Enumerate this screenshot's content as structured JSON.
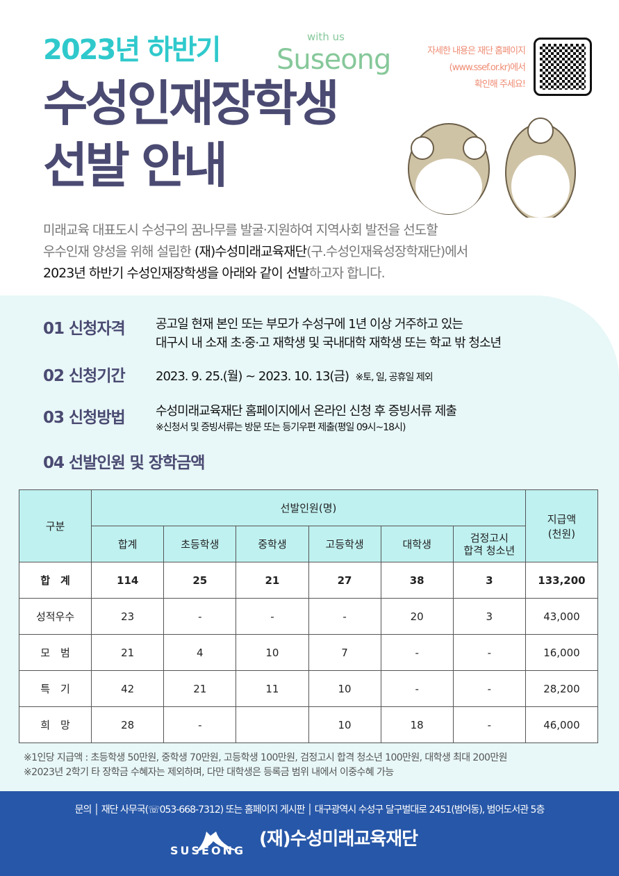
{
  "header": {
    "subtitle": "2023년 하반기",
    "brand_small": "with us",
    "brand": "Suseong",
    "title_line1": "수성인재장학생",
    "title_line2": "선발 안내",
    "note": [
      "자세한 내용은 재단 홈페이지",
      "(www.ssef.or.kr)에서",
      "확인해 주세요!"
    ]
  },
  "intro": {
    "line1": "미래교육 대표도시 수성구의 꿈나무를 발굴·지원하여 지역사회 발전을 선도할",
    "line2_a": "우수인재 양성을 위해 설립한 ",
    "line2_b": "(재)수성미래교육재단",
    "line2_c": "(구.수성인재육성장학재단)에서",
    "line3_a": "2023년 하반기 수성인재장학생을 아래와 같이 선발",
    "line3_b": "하고자 합니다."
  },
  "sections": [
    {
      "heading": "01 신청자격",
      "lines": [
        "공고일 현재 본인 또는 부모가 수성구에 1년 이상 거주하고 있는",
        "대구시 내 소재 초·중·고 재학생 및 국내대학 재학생 또는 학교 밖 청소년"
      ]
    },
    {
      "heading": "02 신청기간",
      "text": "2023. 9. 25.(월) ~ 2023. 10. 13(금)",
      "note": "※토, 일, 공휴일 제외"
    },
    {
      "heading": "03 신청방법",
      "text": "수성미래교육재단 홈페이지에서 온라인 신청 후 증빙서류 제출",
      "note": "※신청서 및 증빙서류는 방문 또는 등기우편 제출(평일 09시~18시)"
    },
    {
      "heading": "04 선발인원 및 장학금액"
    }
  ],
  "table": {
    "col_category": "구분",
    "group_header": "선발인원(명)",
    "col_amount": "지급액\n(천원)",
    "sub_headers": [
      "합계",
      "초등학생",
      "중학생",
      "고등학생",
      "대학생",
      "검정고시\n합격 청소년"
    ],
    "rows": [
      {
        "label": "합　계",
        "values": [
          "114",
          "25",
          "21",
          "27",
          "38",
          "3",
          "133,200"
        ]
      },
      {
        "label": "성적우수",
        "values": [
          "23",
          "-",
          "-",
          "-",
          "20",
          "3",
          "43,000"
        ]
      },
      {
        "label": "모　범",
        "values": [
          "21",
          "4",
          "10",
          "7",
          "-",
          "-",
          "16,000"
        ]
      },
      {
        "label": "특　기",
        "values": [
          "42",
          "21",
          "11",
          "10",
          "-",
          "-",
          "28,200"
        ]
      },
      {
        "label": "희　망",
        "values": [
          "28",
          "-",
          "",
          "10",
          "18",
          "-",
          "46,000"
        ]
      }
    ]
  },
  "footnotes": [
    "※1인당 지급액 : 초등학생 50만원, 중학생 70만원, 고등학생 100만원, 검정고시 합격 청소년 100만원, 대학생 최대 200만원",
    "※2023년 2학기 타 장학금 수혜자는 제외하며, 다만 대학생은 등록금 범위 내에서 이중수혜 가능"
  ],
  "footer": {
    "contact": "문의 │ 재단 사무국(☏053-668-7312) 또는 홈페이지 게시판 │ 대구광역시 수성구 달구벌대로 2451(범어동), 범어도서관 5층",
    "logo_text": "SUSEONG",
    "org": "(재)수성미래교육재단"
  },
  "colors": {
    "title": "#4a4a72",
    "accent": "#2fc9cc",
    "footer": "#2757a8",
    "table_header": "#bff1f0"
  }
}
